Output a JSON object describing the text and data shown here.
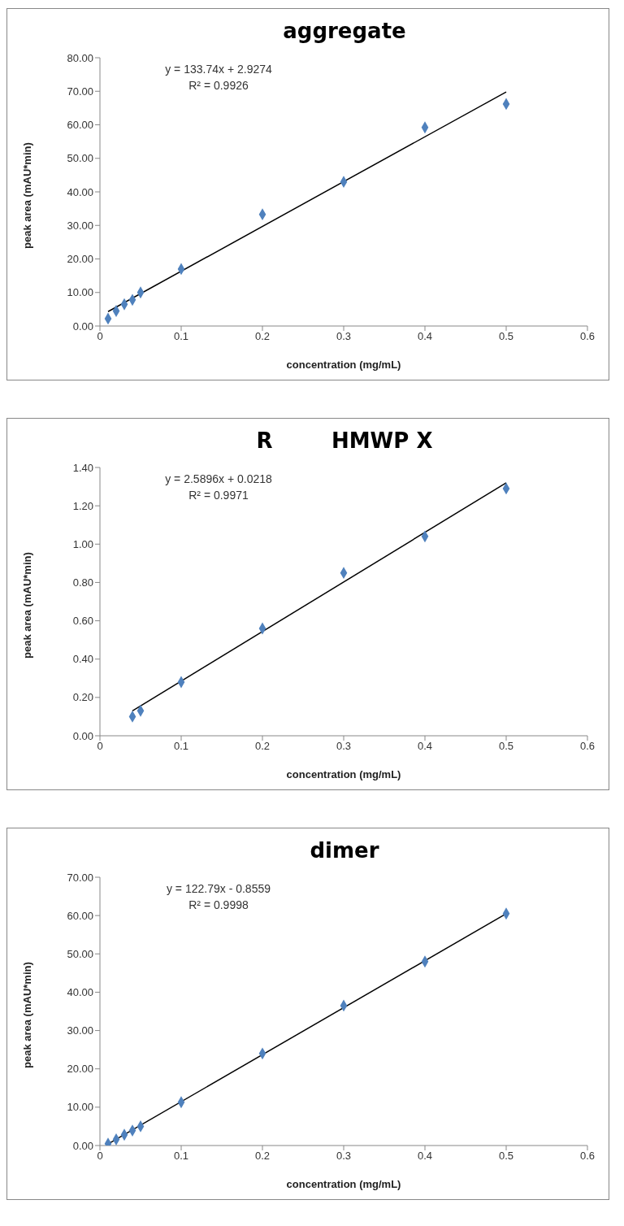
{
  "chart_data": [
    {
      "type": "scatter",
      "title": "aggregate",
      "xlabel": "concentration  (mg/mL)",
      "ylabel": "peak area (mAU*min)",
      "annotations": [
        "y = 133.74x + 2.9274",
        "R² = 0.9926"
      ],
      "marker": "diamond",
      "grid": false,
      "legend": false,
      "xlim": [
        0,
        0.6
      ],
      "xticks": [
        0,
        0.1,
        0.2,
        0.3,
        0.4,
        0.5,
        0.6
      ],
      "ylim": [
        0,
        80
      ],
      "yticks": [
        {
          "value": 0,
          "label": "0.00"
        },
        {
          "value": 10,
          "label": "10.00"
        },
        {
          "value": 20,
          "label": "20.00"
        },
        {
          "value": 30,
          "label": "30.00"
        },
        {
          "value": 40,
          "label": "40.00"
        },
        {
          "value": 50,
          "label": "50.00"
        },
        {
          "value": 60,
          "label": "60.00"
        },
        {
          "value": 70,
          "label": "70.00"
        },
        {
          "value": 80,
          "label": "80.00"
        }
      ],
      "series": [
        {
          "type": "scatter",
          "color": "#4f81bd",
          "x": [
            0.01,
            0.02,
            0.03,
            0.04,
            0.05,
            0.1,
            0.2,
            0.3,
            0.4,
            0.5
          ],
          "values": [
            2.2,
            4.5,
            6.5,
            7.8,
            10.0,
            17.0,
            33.3,
            43.0,
            59.2,
            66.2
          ]
        },
        {
          "type": "line",
          "color": "#000000",
          "marker": "none",
          "x": [
            0.01,
            0.5
          ],
          "values": [
            4.3,
            69.8
          ]
        }
      ]
    },
    {
      "type": "scatter",
      "title": "R        HMWP X",
      "xlabel": "concentration  (mg/mL)",
      "ylabel": "peak area (mAU*min)",
      "annotations": [
        "y = 2.5896x + 0.0218",
        "R² = 0.9971"
      ],
      "marker": "diamond",
      "grid": false,
      "legend": false,
      "xlim": [
        0,
        0.6
      ],
      "xticks": [
        0,
        0.1,
        0.2,
        0.3,
        0.4,
        0.5,
        0.6
      ],
      "ylim": [
        0,
        1.4
      ],
      "yticks": [
        {
          "value": 0,
          "label": "0.00"
        },
        {
          "value": 0.2,
          "label": "0.20"
        },
        {
          "value": 0.4,
          "label": "0.40"
        },
        {
          "value": 0.6,
          "label": "0.60"
        },
        {
          "value": 0.8,
          "label": "0.80"
        },
        {
          "value": 1.0,
          "label": "1.00"
        },
        {
          "value": 1.2,
          "label": "1.20"
        },
        {
          "value": 1.4,
          "label": "1.40"
        }
      ],
      "series": [
        {
          "type": "scatter",
          "color": "#4f81bd",
          "x": [
            0.04,
            0.05,
            0.1,
            0.2,
            0.3,
            0.4,
            0.5
          ],
          "values": [
            0.1,
            0.13,
            0.28,
            0.56,
            0.85,
            1.04,
            1.29
          ]
        },
        {
          "type": "line",
          "color": "#000000",
          "marker": "none",
          "x": [
            0.04,
            0.5
          ],
          "values": [
            0.13,
            1.32
          ]
        }
      ]
    },
    {
      "type": "scatter",
      "title": "dimer",
      "xlabel": "concentration  (mg/mL)",
      "ylabel": "peak area (mAU*min)",
      "annotations": [
        "y = 122.79x - 0.8559",
        "R² = 0.9998"
      ],
      "marker": "diamond",
      "grid": false,
      "legend": false,
      "xlim": [
        0,
        0.6
      ],
      "xticks": [
        0,
        0.1,
        0.2,
        0.3,
        0.4,
        0.5,
        0.6
      ],
      "ylim": [
        0,
        70
      ],
      "yticks": [
        {
          "value": 0,
          "label": "0.00"
        },
        {
          "value": 10,
          "label": "10.00"
        },
        {
          "value": 20,
          "label": "20.00"
        },
        {
          "value": 30,
          "label": "30.00"
        },
        {
          "value": 40,
          "label": "40.00"
        },
        {
          "value": 50,
          "label": "50.00"
        },
        {
          "value": 60,
          "label": "60.00"
        },
        {
          "value": 70,
          "label": "70.00"
        }
      ],
      "series": [
        {
          "type": "scatter",
          "color": "#4f81bd",
          "x": [
            0.01,
            0.02,
            0.03,
            0.04,
            0.05,
            0.1,
            0.2,
            0.3,
            0.4,
            0.5
          ],
          "values": [
            0.5,
            1.6,
            2.8,
            3.9,
            5.0,
            11.3,
            24.0,
            36.5,
            48.0,
            60.5
          ]
        },
        {
          "type": "line",
          "color": "#000000",
          "marker": "none",
          "x": [
            0.01,
            0.5
          ],
          "values": [
            0.4,
            60.5
          ]
        }
      ]
    }
  ]
}
